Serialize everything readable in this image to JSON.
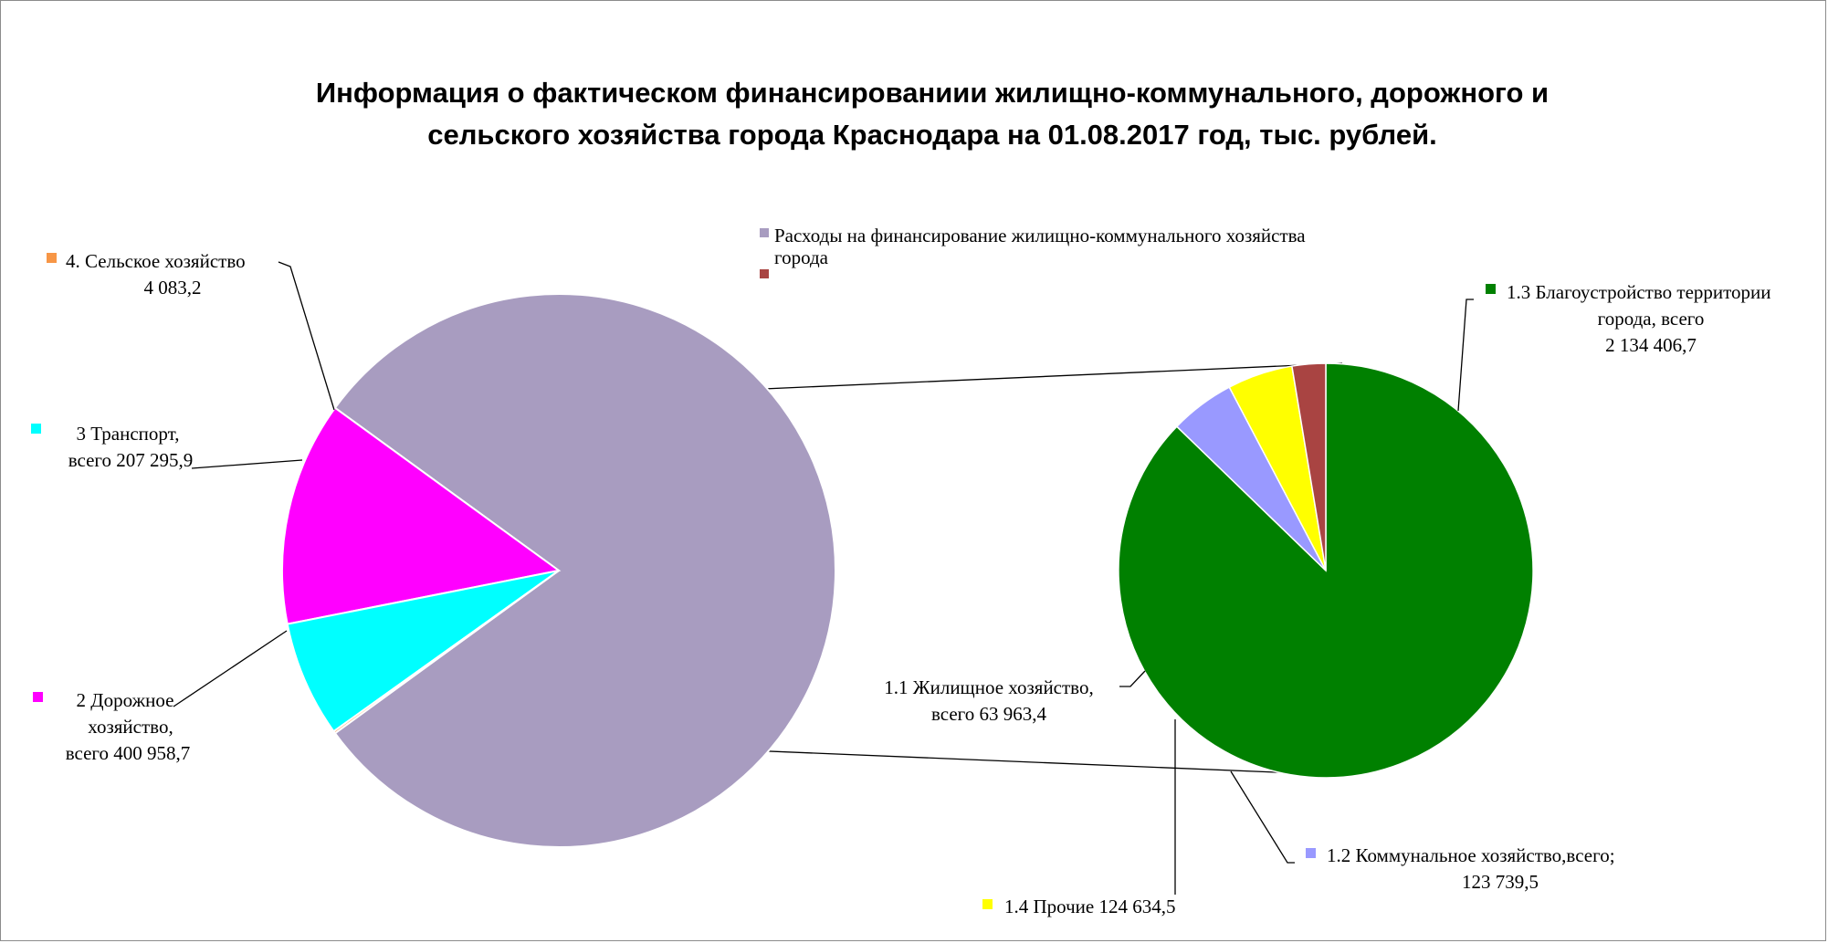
{
  "chart_data": {
    "type": "pie",
    "title_lines": [
      "Информация о фактическом финансированиии жилищно-коммунального, дорожного и",
      "сельского хозяйства города Краснодара на 01.08.2017 год, тыс. рублей."
    ],
    "legend": [
      {
        "label_lines": [
          "Расходы на финансирование жилищно-коммунального  хозяйства",
          "города"
        ],
        "color": "#A89CC0"
      },
      {
        "label_lines": [
          ""
        ],
        "color": "#A94442"
      }
    ],
    "main_pie": {
      "slices": [
        {
          "key": "hcs",
          "name": "Расходы на финансирование жилищно-коммунального хозяйства города",
          "value": 2446744.1,
          "color": "#A89CC0"
        },
        {
          "key": "road",
          "name": "2 Дорожное хозяйство",
          "value": 400958.7,
          "color": "#FF00FF",
          "label_lines": [
            "2 Дорожное",
            "хозяйство,",
            "всего 400 958,7"
          ]
        },
        {
          "key": "transport",
          "name": "3 Транспорт",
          "value": 207295.9,
          "color": "#00FFFF",
          "label_lines": [
            "3 Транспорт,",
            "всего 207 295,9"
          ]
        },
        {
          "key": "agri",
          "name": "4. Сельское хозяйство",
          "value": 4083.2,
          "color": "#F79646",
          "label_lines": [
            "4. Сельское хозяйство",
            "4 083,2"
          ]
        }
      ]
    },
    "secondary_pie": {
      "slices": [
        {
          "key": "s13",
          "name": "1.3 Благоустройство территории города, всего",
          "value": 2134406.7,
          "color": "#008000",
          "label_lines": [
            "1.3 Благоустройство территории",
            "города, всего",
            "2 134 406,7"
          ]
        },
        {
          "key": "s12",
          "name": "1.2 Коммунальное хозяйство,всего;",
          "value": 123739.5,
          "color": "#9999FF",
          "label_lines": [
            "1.2 Коммунальное хозяйство,всего;",
            "123 739,5"
          ]
        },
        {
          "key": "s14",
          "name": "1.4 Прочие",
          "value": 124634.5,
          "color": "#FFFF00",
          "label_lines": [
            "1.4 Прочие 124 634,5"
          ]
        },
        {
          "key": "s11",
          "name": "1.1 Жилищное хозяйство",
          "value": 63963.4,
          "color": "#A94442",
          "label_lines": [
            "1.1 Жилищное хозяйство,",
            "всего 63 963,4"
          ]
        }
      ]
    }
  }
}
